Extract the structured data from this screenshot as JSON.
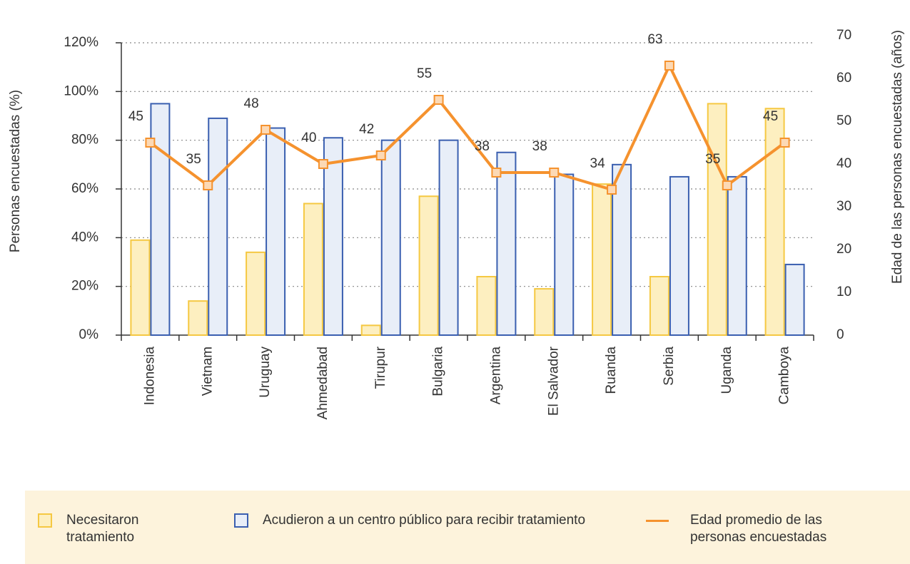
{
  "chart_data": {
    "type": "bar_line",
    "y_label": "Personas encuestadas (%)",
    "y2_label": "Edad de las personas encuestadas (años)",
    "categories": [
      "Indonesia",
      "Vietnam",
      "Uruguay",
      "Ahmedabad",
      "Tirupur",
      "Bulgaria",
      "Argentina",
      "El Salvador",
      "Ruanda",
      "Serbia",
      "Uganda",
      "Camboya"
    ],
    "series": [
      {
        "name": "Necesitaron tratamiento",
        "type": "bar",
        "color": "#f5c842",
        "fill": "#fdefc0",
        "values": [
          39,
          14,
          34,
          54,
          4,
          57,
          24,
          19,
          62,
          24,
          95,
          93
        ]
      },
      {
        "name": "Acudieron a un centro público para recibir tratamiento",
        "type": "bar",
        "color": "#3a5fb0",
        "fill": "#e8eef8",
        "values": [
          95,
          89,
          85,
          81,
          80,
          80,
          75,
          66,
          70,
          65,
          65,
          29
        ]
      },
      {
        "name": "Edad promedio de las personas encuestadas",
        "type": "line",
        "axis": "y2",
        "color": "#f5922e",
        "fill": "#fcd9b5",
        "values": [
          45,
          35,
          48,
          40,
          42,
          55,
          38,
          38,
          34,
          63,
          35,
          45
        ]
      }
    ],
    "ylim": [
      0,
      120
    ],
    "yticks": [
      {
        "value": 0,
        "label": "0%"
      },
      {
        "value": 20,
        "label": "20%"
      },
      {
        "value": 40,
        "label": "40%"
      },
      {
        "value": 60,
        "label": "60%"
      },
      {
        "value": 80,
        "label": "80%"
      },
      {
        "value": 100,
        "label": "100%"
      },
      {
        "value": 120,
        "label": "120%"
      }
    ],
    "y2lim": [
      0,
      70
    ],
    "y2ticks": [
      0,
      10,
      20,
      30,
      40,
      50,
      60,
      70
    ],
    "grid": true
  }
}
